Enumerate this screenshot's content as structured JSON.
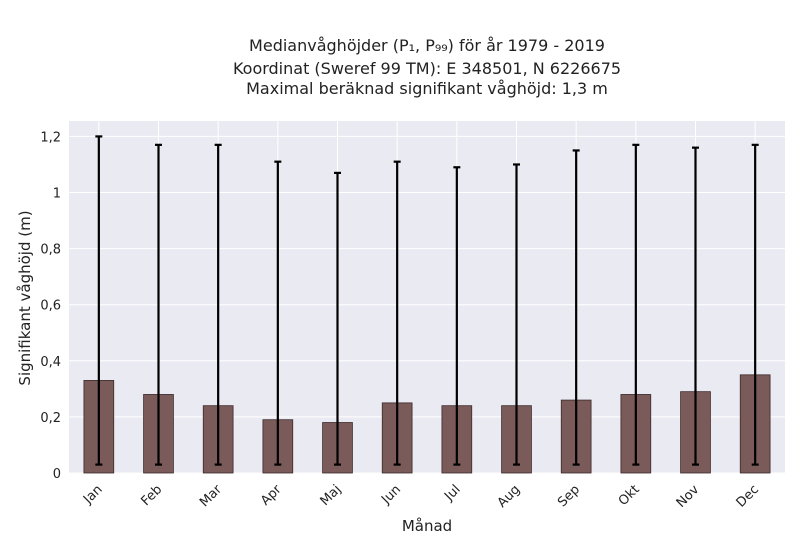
{
  "chart_data": {
    "type": "bar",
    "title_lines": [
      "Medianvåghöjder (P₁, P₉₉) för år 1979 - 2019",
      "Koordinat (Sweref 99 TM): E 348501, N 6226675",
      "Maximal beräknad signifikant våghöjd: 1,3 m"
    ],
    "xlabel": "Månad",
    "ylabel": "Signifikant våghöjd (m)",
    "categories": [
      "Jan",
      "Feb",
      "Mar",
      "Apr",
      "Maj",
      "Jun",
      "Jul",
      "Aug",
      "Sep",
      "Okt",
      "Nov",
      "Dec"
    ],
    "series": [
      {
        "values": [
          0.33,
          0.28,
          0.24,
          0.19,
          0.18,
          0.25,
          0.24,
          0.24,
          0.26,
          0.28,
          0.29,
          0.35
        ],
        "error_low": [
          0.03,
          0.03,
          0.03,
          0.03,
          0.03,
          0.03,
          0.03,
          0.03,
          0.03,
          0.03,
          0.03,
          0.03
        ],
        "error_high": [
          1.2,
          1.17,
          1.17,
          1.11,
          1.07,
          1.11,
          1.09,
          1.1,
          1.15,
          1.17,
          1.16,
          1.17
        ]
      }
    ],
    "ylim": [
      0,
      1.255
    ],
    "yticks": [
      "0",
      "0,2",
      "0,4",
      "0,6",
      "0,8",
      "1",
      "1,2"
    ],
    "grid": true,
    "colors": {
      "bar": "#7b5a5a",
      "bar_edge": "#3a2a2a",
      "plot_bg": "#eaeaf2",
      "grid": "#ffffff",
      "errorbar": "#000000"
    }
  }
}
